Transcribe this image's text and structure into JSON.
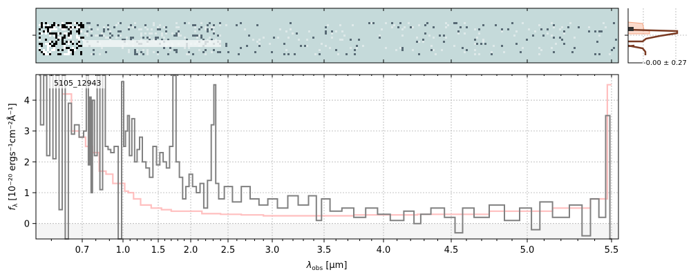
{
  "chart_data": [
    {
      "type": "heatmap",
      "panel": "2d-spectrum",
      "background_color": "#c5dada",
      "colormap": "bone"
    },
    {
      "type": "line",
      "panel": "spectrum",
      "label": "5105_12943",
      "xlabel_main": "λ",
      "xlabel_sub": "obs",
      "xlabel_unit": " [μm]",
      "ylabel_main": "f",
      "ylabel_sub": "λ",
      "ylabel_unit": " [10⁻²⁰ ergs⁻¹cm⁻²Å⁻¹]",
      "xticks": [
        "0.7",
        "1.0",
        "1.5",
        "2.0",
        "2.5",
        "3.0",
        "3.5",
        "4.0",
        "4.5",
        "5.0",
        "5.5"
      ],
      "yticks": [
        "0",
        "1",
        "2",
        "3",
        "4"
      ],
      "ylim": [
        -0.5,
        4.83
      ],
      "xlim": [
        0.55,
        5.52
      ],
      "grid": true,
      "colors": {
        "data": "#808080",
        "model": "#ffb4b4",
        "negative_shade": "#f5f5f5"
      },
      "series": [
        {
          "x": [
            0.56,
            0.57,
            0.58,
            0.59,
            0.6,
            0.61,
            0.62,
            0.63,
            0.64,
            0.65,
            0.66,
            0.67,
            0.68,
            0.7,
            0.72,
            0.74,
            0.75,
            0.76,
            0.77,
            0.78,
            0.8,
            0.82,
            0.84,
            0.86,
            0.88,
            0.9,
            0.92,
            0.95,
            0.98,
            1.0,
            1.02,
            1.05,
            1.08,
            1.1,
            1.15,
            1.18,
            1.22,
            1.25,
            1.3,
            1.35,
            1.4,
            1.45,
            1.5,
            1.55,
            1.6,
            1.65,
            1.7,
            1.75,
            1.8,
            1.85,
            1.9,
            1.95,
            2.0,
            2.05,
            2.1,
            2.15,
            2.2,
            2.25,
            2.3,
            2.32,
            2.35,
            2.4,
            2.5,
            2.6,
            2.7,
            2.8,
            2.9,
            3.0,
            3.1,
            3.2,
            3.3,
            3.4,
            3.45,
            3.5,
            3.6,
            3.7,
            3.8,
            3.9,
            4.0,
            4.1,
            4.2,
            4.25,
            4.3,
            4.4,
            4.5,
            4.55,
            4.6,
            4.7,
            4.8,
            4.9,
            5.0,
            5.05,
            5.1,
            5.2,
            5.3,
            5.35,
            5.4,
            5.45,
            5.48,
            5.5
          ],
          "y": [
            4.8,
            3.2,
            4.8,
            2.2,
            4.8,
            2.1,
            4.8,
            0.45,
            4.8,
            -0.5,
            3.9,
            2.9,
            3.2,
            2.8,
            3.0,
            4.8,
            1.9,
            4.1,
            1.0,
            4.0,
            2.2,
            4.8,
            1.1,
            4.8,
            2.5,
            2.4,
            2.3,
            2.5,
            -0.5,
            4.6,
            2.5,
            3.0,
            3.5,
            2.2,
            3.4,
            2.0,
            2.4,
            2.8,
            2.0,
            1.8,
            1.5,
            2.5,
            1.9,
            2.3,
            2.0,
            1.8,
            2.5,
            4.8,
            2.0,
            1.5,
            0.8,
            1.2,
            1.6,
            1.2,
            1.0,
            1.3,
            0.5,
            1.4,
            3.2,
            4.5,
            1.3,
            0.8,
            1.2,
            0.7,
            1.2,
            0.8,
            0.6,
            0.8,
            0.5,
            0.9,
            0.6,
            0.9,
            0.1,
            0.8,
            0.4,
            0.5,
            0.2,
            0.5,
            0.3,
            0.1,
            0.4,
            0.0,
            0.3,
            0.5,
            0.2,
            -0.3,
            0.5,
            0.2,
            0.6,
            0.1,
            0.5,
            -0.2,
            0.7,
            0.2,
            0.6,
            -0.4,
            0.8,
            0.2,
            3.5,
            -0.5
          ]
        },
        {
          "x": [
            0.62,
            0.65,
            0.68,
            0.7,
            0.75,
            0.8,
            0.85,
            0.9,
            0.95,
            1.0,
            1.05,
            1.1,
            1.2,
            1.3,
            1.5,
            1.6,
            1.8,
            2.0,
            2.3,
            2.5,
            2.8,
            3.0,
            3.5,
            4.0,
            4.5,
            5.0,
            5.3,
            5.45,
            5.5
          ],
          "y": [
            4.5,
            4.2,
            3.0,
            2.8,
            2.5,
            2.3,
            1.7,
            1.6,
            1.3,
            1.3,
            1.05,
            1.0,
            0.8,
            0.6,
            0.5,
            0.45,
            0.4,
            0.4,
            0.32,
            0.3,
            0.28,
            0.25,
            0.25,
            0.28,
            0.3,
            0.4,
            0.5,
            0.8,
            4.5
          ]
        }
      ]
    },
    {
      "type": "histogram",
      "panel": "residual-histogram",
      "annotation": "-0.00 ± 0.27",
      "colors": {
        "outline": "#7a3a22",
        "fill": "#f4a582"
      }
    }
  ]
}
